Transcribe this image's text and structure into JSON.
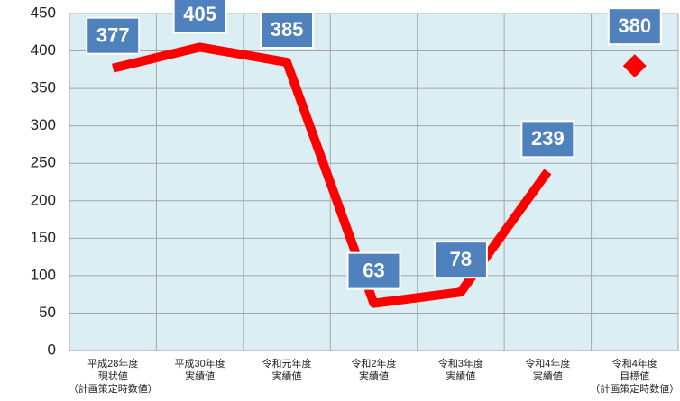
{
  "chart_data": {
    "type": "line",
    "categories": [
      [
        "平成28年度",
        "現状値",
        "（計画策定時数値）"
      ],
      [
        "平成30年度",
        "実績値"
      ],
      [
        "令和元年度",
        "実績値"
      ],
      [
        "令和2年度",
        "実績値"
      ],
      [
        "令和3年度",
        "実績値"
      ],
      [
        "令和4年度",
        "実績値"
      ],
      [
        "令和4年度",
        "目標値",
        "（計画策定時数値）"
      ]
    ],
    "series": [
      {
        "color": "#ff0000",
        "marker": "none",
        "values": [
          377,
          405,
          385,
          63,
          78,
          239,
          null
        ]
      },
      {
        "color": "#ff0000",
        "marker": "diamond",
        "values": [
          null,
          null,
          null,
          null,
          null,
          null,
          380
        ]
      }
    ],
    "ylim": [
      0,
      450
    ],
    "yticks": [
      0,
      50,
      100,
      150,
      200,
      250,
      300,
      350,
      400,
      450
    ],
    "grid": true,
    "plot_background": "#dbeef4",
    "label_color": "#4f81bd"
  }
}
